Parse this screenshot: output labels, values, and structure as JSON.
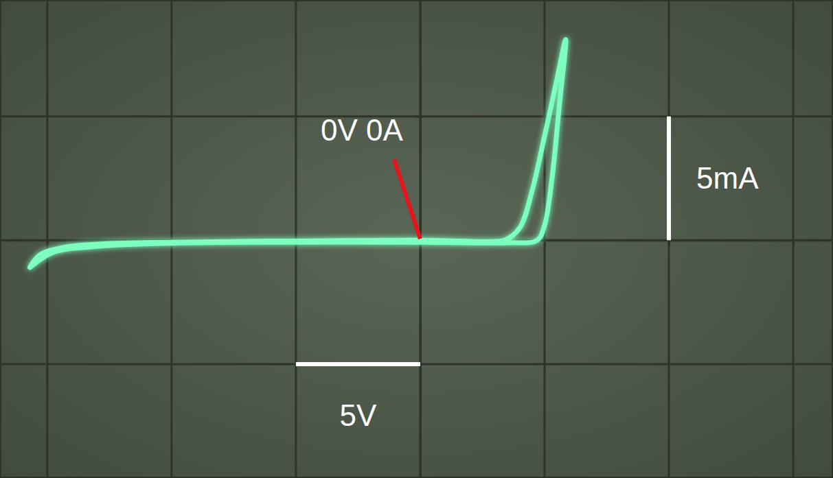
{
  "chart_data": {
    "type": "line",
    "x": [
      -15.7,
      -15.3,
      -14.4,
      -12.8,
      -10,
      -5,
      0,
      3,
      3.4,
      4.0,
      4.5,
      5.0,
      5.5,
      5.85,
      5.6,
      5.3,
      5.0,
      4.7,
      3.5,
      0,
      -5,
      -10,
      -13,
      -14.8,
      -15.7
    ],
    "series": [
      {
        "color": "#7cffbf",
        "values": [
          -1.1,
          -0.6,
          -0.3,
          -0.15,
          -0.08,
          -0.03,
          0,
          -0.05,
          0,
          0.5,
          2.0,
          4.2,
          6.5,
          8.1,
          5.5,
          2.5,
          0.6,
          0,
          -0.1,
          -0.08,
          -0.08,
          -0.12,
          -0.25,
          -0.5,
          -1.1
        ]
      }
    ],
    "xlim": [
      -16.9,
      16.6
    ],
    "ylim": [
      -9.6,
      9.7
    ],
    "xticks": [
      -15,
      -10,
      -5,
      0,
      5,
      10,
      15
    ],
    "yticks": [
      -5,
      0,
      5
    ],
    "grid": true,
    "tick_labels": false,
    "annotations": [
      {
        "text": "0V 0A",
        "x": 0,
        "y": 0
      },
      {
        "text": "5V",
        "x": [
          -5,
          0
        ],
        "y": -5
      },
      {
        "text": "5mA",
        "x": 10,
        "y": [
          0,
          5
        ]
      }
    ]
  }
}
